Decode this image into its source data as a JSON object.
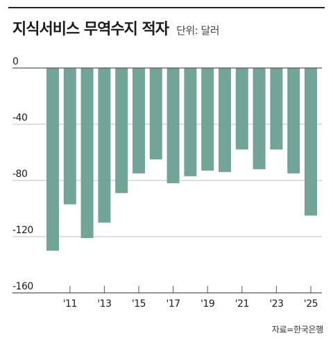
{
  "header": {
    "title": "지식서비스 무역수지 적자",
    "unit": "단위: 달러"
  },
  "footer": {
    "source": "자료=한국은행"
  },
  "colors": {
    "bar": "#72a597",
    "grid": "#bfbfbf",
    "axis": "#555555",
    "text": "#1a1a1a"
  },
  "chart_data": {
    "type": "bar",
    "title": "지식서비스 무역수지 적자",
    "subtitle": "단위: 달러",
    "categories": [
      "'10",
      "'11",
      "'12",
      "'13",
      "'14",
      "'15",
      "'16",
      "'17",
      "'18",
      "'19",
      "'20",
      "'21",
      "'22",
      "'23",
      "'24",
      "'25"
    ],
    "x_tick_labels": [
      {
        "category": "'11",
        "label": "'11"
      },
      {
        "category": "'13",
        "label": "'13"
      },
      {
        "category": "'15",
        "label": "'15"
      },
      {
        "category": "'17",
        "label": "'17"
      },
      {
        "category": "'19",
        "label": "'19"
      },
      {
        "category": "'21",
        "label": "'21"
      },
      {
        "category": "'23",
        "label": "'23"
      },
      {
        "category": "'25",
        "label": "'25"
      }
    ],
    "values": [
      -130,
      -97,
      -121,
      -110,
      -89,
      -75,
      -65,
      -82,
      -77,
      -73,
      -74,
      -58,
      -72,
      -58,
      -75,
      -105
    ],
    "ylim": [
      -160,
      0
    ],
    "yticks": [
      0,
      -40,
      -80,
      -120,
      -160
    ],
    "grid": true,
    "xlabel": "",
    "ylabel": ""
  }
}
